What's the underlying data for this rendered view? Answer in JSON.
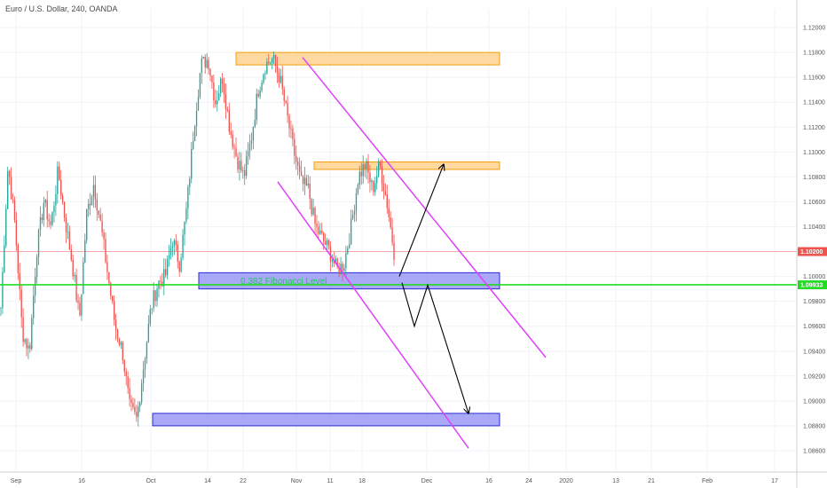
{
  "header": {
    "title": "Euro / U.S. Dollar, 240, OANDA"
  },
  "colors": {
    "up": "#26a69a",
    "down": "#ef5350",
    "channel": "#e040fb",
    "supply_zone_fill": "#ffcc80",
    "supply_zone_stroke": "#f59e0b",
    "demand_zone_fill": "#8c8cf5",
    "demand_zone_stroke": "#2b2bd6",
    "fib_line": "#22dd22",
    "price_line": "#ef5350",
    "arrow": "#000000"
  },
  "chart_data": {
    "type": "candlestick",
    "instrument": "Euro / U.S. Dollar",
    "timeframe": "240",
    "source": "OANDA",
    "ylim": [
      1.085,
      1.1215
    ],
    "y_ticks": [
      "1.12000",
      "1.11800",
      "1.11600",
      "1.11400",
      "1.11200",
      "1.11000",
      "1.10800",
      "1.10600",
      "1.10400",
      "1.10200",
      "1.10000",
      "1.09800",
      "1.09600",
      "1.09400",
      "1.09200",
      "1.09000",
      "1.08800",
      "1.08600"
    ],
    "x_ticks": [
      "Sep",
      "16",
      "Oct",
      "14",
      "22",
      "Nov",
      "11",
      "18",
      "Dec",
      "16",
      "24",
      "2020",
      "13",
      "21",
      "Feb",
      "17"
    ],
    "current_price": {
      "value": 1.102,
      "label": "1.10200"
    },
    "fib_level": {
      "value": 1.09933,
      "label": "1.09933",
      "text": "0.382 Fibonacci Level"
    },
    "price_path": [
      [
        "Sep",
        1.0975
      ],
      [
        "Sep",
        1.109
      ],
      [
        "Sep",
        1.104
      ],
      [
        "Sep",
        1.0955
      ],
      [
        "Sep",
        1.094
      ],
      [
        "Sep",
        1.102
      ],
      [
        "Sep",
        1.106
      ],
      [
        "16",
        1.104
      ],
      [
        "16",
        1.1085
      ],
      [
        "16",
        1.1045
      ],
      [
        "16",
        1.101
      ],
      [
        "16",
        1.0965
      ],
      [
        "16",
        1.105
      ],
      [
        "16",
        1.1075
      ],
      [
        "16",
        1.104
      ],
      [
        "Oct",
        1.1
      ],
      [
        "Oct",
        1.096
      ],
      [
        "Oct",
        1.094
      ],
      [
        "Oct",
        1.0895
      ],
      [
        "Oct",
        1.0885
      ],
      [
        "Oct",
        1.093
      ],
      [
        "Oct",
        1.0975
      ],
      [
        "Oct",
        1.0995
      ],
      [
        "Oct",
        1.1
      ],
      [
        "Oct",
        1.103
      ],
      [
        "14",
        1.101
      ],
      [
        "14",
        1.1055
      ],
      [
        "14",
        1.112
      ],
      [
        "14",
        1.117
      ],
      [
        "22",
        1.1175
      ],
      [
        "22",
        1.114
      ],
      [
        "22",
        1.116
      ],
      [
        "22",
        1.112
      ],
      [
        "22",
        1.1095
      ],
      [
        "22",
        1.108
      ],
      [
        "22",
        1.111
      ],
      [
        "22",
        1.115
      ],
      [
        "22",
        1.117
      ],
      [
        "Nov",
        1.1175
      ],
      [
        "Nov",
        1.116
      ],
      [
        "Nov",
        1.113
      ],
      [
        "Nov",
        1.11
      ],
      [
        "Nov",
        1.1075
      ],
      [
        "11",
        1.107
      ],
      [
        "11",
        1.104
      ],
      [
        "11",
        1.103
      ],
      [
        "11",
        1.102
      ],
      [
        "11",
        1.1005
      ],
      [
        "11",
        1.101
      ],
      [
        "18",
        1.104
      ],
      [
        "18",
        1.108
      ],
      [
        "18",
        1.109
      ],
      [
        "18",
        1.107
      ],
      [
        "18",
        1.109
      ],
      [
        "18",
        1.106
      ],
      [
        "18",
        1.102
      ]
    ],
    "zones": [
      {
        "name": "supply-top",
        "kind": "supply",
        "y_top": 1.118,
        "y_bottom": 1.117
      },
      {
        "name": "supply-mid",
        "kind": "supply",
        "y_top": 1.1092,
        "y_bottom": 1.1086
      },
      {
        "name": "demand-mid",
        "kind": "demand",
        "y_top": 1.1003,
        "y_bottom": 1.099
      },
      {
        "name": "demand-low",
        "kind": "demand",
        "y_top": 1.089,
        "y_bottom": 1.088
      }
    ],
    "channel_lines": [
      {
        "from": [
          1.1176,
          "Nov"
        ],
        "to": [
          1.0935,
          "Feb"
        ]
      },
      {
        "from": [
          1.1076,
          "22"
        ],
        "to": [
          1.0862,
          "Dec"
        ]
      }
    ],
    "projection_arrows": [
      {
        "path": [
          [
            1.1,
            "Nov"
          ],
          [
            1.109,
            "Dec"
          ]
        ]
      },
      {
        "path": [
          [
            1.0995,
            "Nov"
          ],
          [
            1.096,
            "Nov"
          ],
          [
            1.0993,
            "Nov"
          ],
          [
            1.089,
            "Dec"
          ]
        ]
      }
    ]
  }
}
